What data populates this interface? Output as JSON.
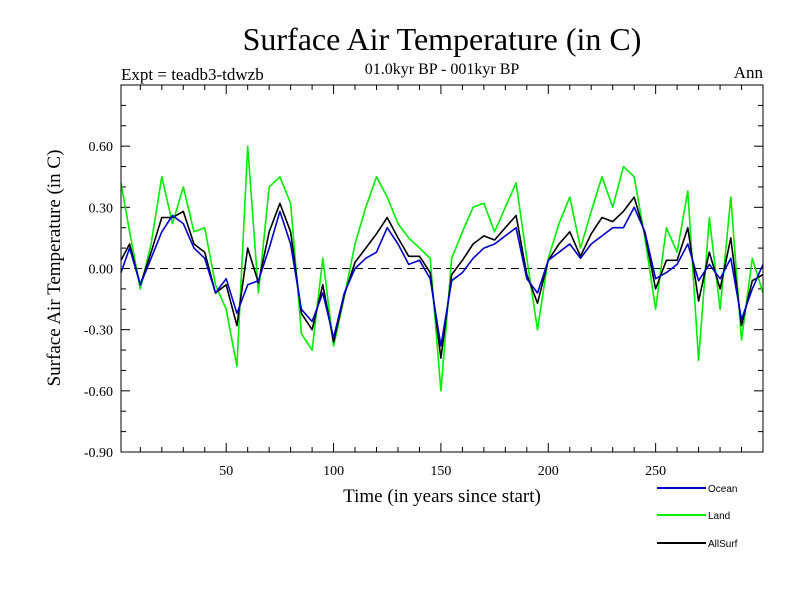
{
  "chart_data": {
    "type": "line",
    "title": "Surface Air Temperature (in C)",
    "subtitle": "01.0kyr BP - 001kyr BP",
    "expt_label": "Expt = teadb3-tdwzb",
    "season_label": "Ann",
    "xlabel": "Time (in years since start)",
    "ylabel": "Surface Air Temperature (in C)",
    "xlim": [
      1,
      300
    ],
    "ylim": [
      -0.9,
      0.9
    ],
    "x_ticks": [
      50,
      100,
      150,
      200,
      250
    ],
    "x_tick_labels": [
      "50",
      "100",
      "150",
      "200",
      "250"
    ],
    "y_ticks": [
      -0.9,
      -0.6,
      -0.3,
      0.0,
      0.3,
      0.6
    ],
    "y_tick_labels": [
      "-0.90",
      "-0.60",
      "-0.30",
      "0.00",
      "0.30",
      "0.60"
    ],
    "zero_line": true,
    "x": [
      1,
      5,
      10,
      15,
      20,
      25,
      30,
      35,
      40,
      45,
      50,
      55,
      60,
      65,
      70,
      75,
      80,
      85,
      90,
      95,
      100,
      105,
      110,
      115,
      120,
      125,
      130,
      135,
      140,
      145,
      150,
      155,
      160,
      165,
      170,
      175,
      180,
      185,
      190,
      195,
      200,
      205,
      210,
      215,
      220,
      225,
      230,
      235,
      240,
      245,
      250,
      255,
      260,
      265,
      270,
      275,
      280,
      285,
      290,
      295,
      300
    ],
    "series": [
      {
        "name": "Ocean",
        "color": "#0000cc",
        "values": [
          -0.02,
          0.1,
          -0.08,
          0.05,
          0.18,
          0.26,
          0.22,
          0.1,
          0.05,
          -0.12,
          -0.05,
          -0.22,
          -0.08,
          -0.06,
          0.1,
          0.28,
          0.12,
          -0.2,
          -0.26,
          -0.12,
          -0.34,
          -0.12,
          0.0,
          0.05,
          0.08,
          0.2,
          0.12,
          0.02,
          0.04,
          -0.05,
          -0.38,
          -0.06,
          -0.02,
          0.05,
          0.1,
          0.12,
          0.16,
          0.2,
          -0.05,
          -0.12,
          0.04,
          0.08,
          0.12,
          0.05,
          0.12,
          0.16,
          0.2,
          0.2,
          0.3,
          0.18,
          -0.05,
          -0.02,
          0.02,
          0.12,
          -0.06,
          0.02,
          -0.05,
          0.05,
          -0.25,
          -0.1,
          0.02
        ]
      },
      {
        "name": "Land",
        "color": "#00ee00",
        "values": [
          0.42,
          0.18,
          -0.1,
          0.12,
          0.45,
          0.22,
          0.4,
          0.18,
          0.2,
          -0.08,
          -0.2,
          -0.48,
          0.6,
          -0.12,
          0.4,
          0.45,
          0.32,
          -0.32,
          -0.4,
          0.05,
          -0.38,
          -0.14,
          0.12,
          0.3,
          0.45,
          0.35,
          0.22,
          0.15,
          0.1,
          0.05,
          -0.6,
          0.05,
          0.18,
          0.3,
          0.32,
          0.18,
          0.3,
          0.42,
          0.05,
          -0.3,
          0.05,
          0.22,
          0.35,
          0.1,
          0.28,
          0.45,
          0.3,
          0.5,
          0.45,
          0.15,
          -0.2,
          0.2,
          0.08,
          0.38,
          -0.45,
          0.25,
          -0.2,
          0.35,
          -0.35,
          0.05,
          -0.12
        ]
      },
      {
        "name": "AllSurf",
        "color": "#000000",
        "values": [
          0.04,
          0.12,
          -0.08,
          0.08,
          0.25,
          0.25,
          0.28,
          0.12,
          0.08,
          -0.12,
          -0.08,
          -0.28,
          0.1,
          -0.07,
          0.18,
          0.32,
          0.18,
          -0.22,
          -0.3,
          -0.08,
          -0.36,
          -0.13,
          0.03,
          0.1,
          0.17,
          0.25,
          0.15,
          0.06,
          0.06,
          -0.02,
          -0.44,
          -0.03,
          0.04,
          0.12,
          0.16,
          0.14,
          0.2,
          0.26,
          -0.03,
          -0.17,
          0.04,
          0.12,
          0.18,
          0.06,
          0.17,
          0.25,
          0.23,
          0.28,
          0.35,
          0.17,
          -0.1,
          0.04,
          0.04,
          0.2,
          -0.16,
          0.08,
          -0.1,
          0.15,
          -0.28,
          -0.06,
          -0.03
        ]
      }
    ],
    "legend_position": "bottom-right"
  }
}
